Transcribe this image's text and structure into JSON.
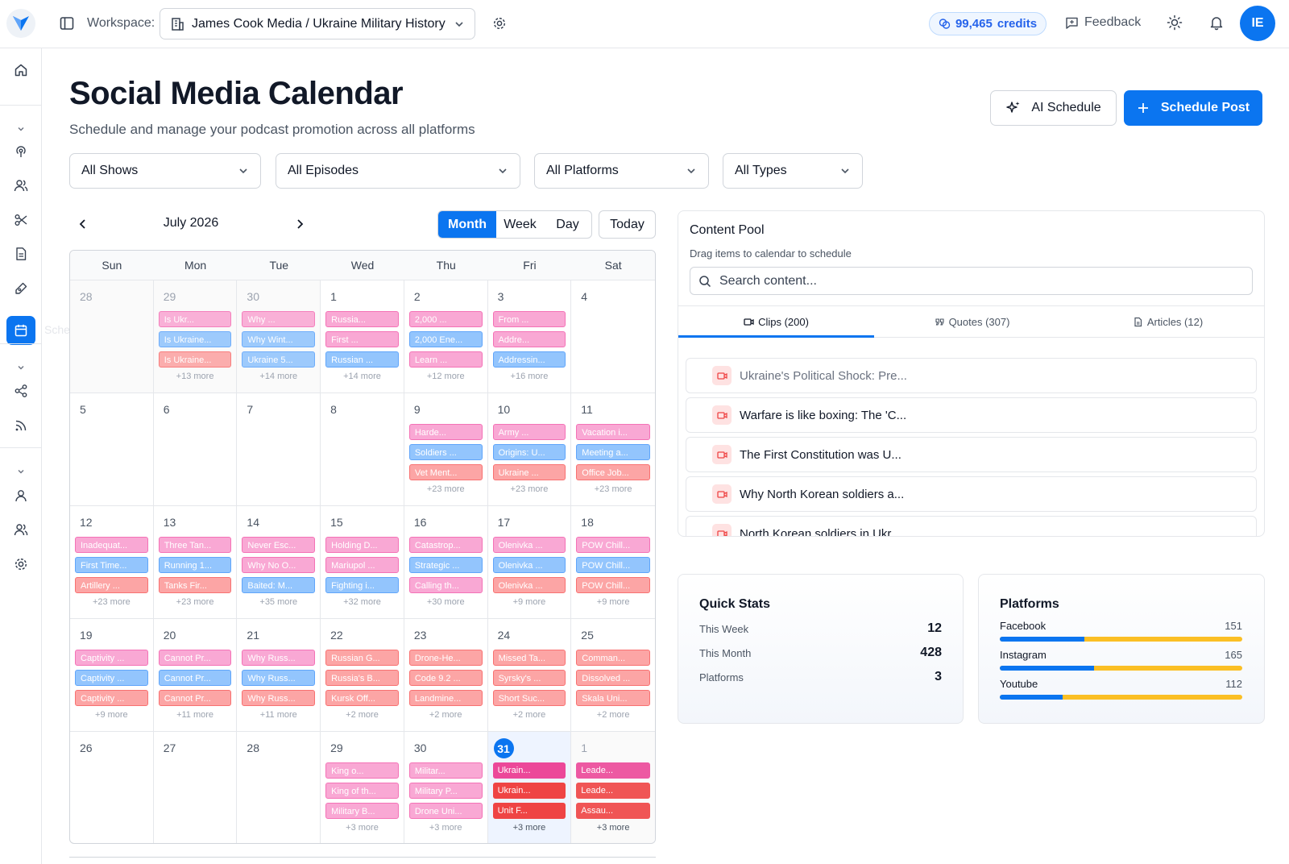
{
  "header": {
    "workspace_label": "Workspace:",
    "workspace_value": "James Cook Media / Ukraine Military History",
    "credits": "99,465",
    "credits_unit": "credits",
    "feedback": "Feedback",
    "avatar_initials": "IE"
  },
  "sidebar": {
    "active_tooltip": "Scheduler",
    "icons": [
      "home-icon",
      "podcast-icon",
      "users-icon",
      "scissors-icon",
      "document-icon",
      "pen-icon",
      "calendar-icon",
      "share-icon",
      "rss-icon",
      "user-icon",
      "team-icon",
      "settings-icon"
    ]
  },
  "page": {
    "title": "Social Media Calendar",
    "subtitle": "Schedule and manage your podcast promotion across all platforms",
    "ai_schedule": "AI Schedule",
    "schedule_post": "Schedule Post"
  },
  "filters": [
    "All Shows",
    "All Episodes",
    "All Platforms",
    "All Types"
  ],
  "calendar": {
    "month_label": "July 2026",
    "views": [
      "Month",
      "Week",
      "Day"
    ],
    "active_view": "Month",
    "today_label": "Today",
    "weekdays": [
      "Sun",
      "Mon",
      "Tue",
      "Wed",
      "Thu",
      "Fri",
      "Sat"
    ],
    "weeks": [
      [
        {
          "day": "28",
          "out": true,
          "events": [],
          "more": ""
        },
        {
          "day": "29",
          "out": true,
          "events": [
            [
              "Is Ukr...",
              "pink"
            ],
            [
              "Is Ukraine...",
              "blue"
            ],
            [
              "Is Ukraine...",
              "salmon"
            ]
          ],
          "more": "+13 more"
        },
        {
          "day": "30",
          "out": true,
          "events": [
            [
              "Why ...",
              "pink"
            ],
            [
              "Why Wint...",
              "blue"
            ],
            [
              "Ukraine 5...",
              "blue"
            ]
          ],
          "more": "+14 more"
        },
        {
          "day": "1",
          "events": [
            [
              "Russia...",
              "pink"
            ],
            [
              "First ...",
              "pink"
            ],
            [
              "Russian ...",
              "blue"
            ]
          ],
          "more": "+14 more"
        },
        {
          "day": "2",
          "events": [
            [
              "2,000 ...",
              "pink"
            ],
            [
              "2,000 Ene...",
              "blue"
            ],
            [
              "Learn ...",
              "pink"
            ]
          ],
          "more": "+12 more"
        },
        {
          "day": "3",
          "events": [
            [
              "From ...",
              "pink"
            ],
            [
              "Addre...",
              "pink"
            ],
            [
              "Addressin...",
              "blue"
            ]
          ],
          "more": "+16 more"
        },
        {
          "day": "4",
          "events": [],
          "more": ""
        }
      ],
      [
        {
          "day": "5",
          "events": [],
          "more": ""
        },
        {
          "day": "6",
          "events": [],
          "more": ""
        },
        {
          "day": "7",
          "events": [],
          "more": ""
        },
        {
          "day": "8",
          "events": [],
          "more": ""
        },
        {
          "day": "9",
          "events": [
            [
              "Harde...",
              "pink"
            ],
            [
              "Soldiers ...",
              "blue"
            ],
            [
              "Vet Ment...",
              "salmon"
            ]
          ],
          "more": "+23 more"
        },
        {
          "day": "10",
          "events": [
            [
              "Army ...",
              "pink"
            ],
            [
              "Origins: U...",
              "blue"
            ],
            [
              "Ukraine ...",
              "salmon"
            ]
          ],
          "more": "+23 more"
        },
        {
          "day": "11",
          "events": [
            [
              "Vacation i...",
              "pink"
            ],
            [
              "Meeting a...",
              "blue"
            ],
            [
              "Office Job...",
              "salmon"
            ]
          ],
          "more": "+23 more"
        }
      ],
      [
        {
          "day": "12",
          "events": [
            [
              "Inadequat...",
              "pink"
            ],
            [
              "First Time...",
              "blue"
            ],
            [
              "Artillery ...",
              "salmon"
            ]
          ],
          "more": "+23 more"
        },
        {
          "day": "13",
          "events": [
            [
              "Three Tan...",
              "pink"
            ],
            [
              "Running 1...",
              "blue"
            ],
            [
              "Tanks Fir...",
              "salmon"
            ]
          ],
          "more": "+23 more"
        },
        {
          "day": "14",
          "events": [
            [
              "Never Esc...",
              "pink"
            ],
            [
              "Why No O...",
              "pink"
            ],
            [
              "Baited: M...",
              "blue"
            ]
          ],
          "more": "+35 more"
        },
        {
          "day": "15",
          "events": [
            [
              "Holding D...",
              "pink"
            ],
            [
              "Mariupol ...",
              "pink"
            ],
            [
              "Fighting i...",
              "blue"
            ]
          ],
          "more": "+32 more"
        },
        {
          "day": "16",
          "events": [
            [
              "Catastrop...",
              "pink"
            ],
            [
              "Strategic ...",
              "blue"
            ],
            [
              "Calling th...",
              "pink"
            ]
          ],
          "more": "+30 more"
        },
        {
          "day": "17",
          "events": [
            [
              "Olenivka ...",
              "pink"
            ],
            [
              "Olenivka ...",
              "blue"
            ],
            [
              "Olenivka ...",
              "salmon"
            ]
          ],
          "more": "+9 more"
        },
        {
          "day": "18",
          "events": [
            [
              "POW Chill...",
              "pink"
            ],
            [
              "POW Chill...",
              "blue"
            ],
            [
              "POW Chill...",
              "salmon"
            ]
          ],
          "more": "+9 more"
        }
      ],
      [
        {
          "day": "19",
          "events": [
            [
              "Captivity ...",
              "pink"
            ],
            [
              "Captivity ...",
              "blue"
            ],
            [
              "Captivity ...",
              "salmon"
            ]
          ],
          "more": "+9 more"
        },
        {
          "day": "20",
          "events": [
            [
              "Cannot Pr...",
              "pink"
            ],
            [
              "Cannot Pr...",
              "blue"
            ],
            [
              "Cannot Pr...",
              "salmon"
            ]
          ],
          "more": "+11 more"
        },
        {
          "day": "21",
          "events": [
            [
              "Why Russ...",
              "pink"
            ],
            [
              "Why Russ...",
              "blue"
            ],
            [
              "Why Russ...",
              "salmon"
            ]
          ],
          "more": "+11 more"
        },
        {
          "day": "22",
          "events": [
            [
              "Russian G...",
              "salmon"
            ],
            [
              "Russia's B...",
              "salmon"
            ],
            [
              "Kursk Off...",
              "salmon"
            ]
          ],
          "more": "+2 more"
        },
        {
          "day": "23",
          "events": [
            [
              "Drone-He...",
              "salmon"
            ],
            [
              "Code 9.2 ...",
              "salmon"
            ],
            [
              "Landmine...",
              "salmon"
            ]
          ],
          "more": "+2 more"
        },
        {
          "day": "24",
          "events": [
            [
              "Missed Ta...",
              "salmon"
            ],
            [
              "Syrsky's ...",
              "salmon"
            ],
            [
              "Short Suc...",
              "salmon"
            ]
          ],
          "more": "+2 more"
        },
        {
          "day": "25",
          "events": [
            [
              "Comman...",
              "salmon"
            ],
            [
              "Dissolved ...",
              "salmon"
            ],
            [
              "Skala Uni...",
              "salmon"
            ]
          ],
          "more": "+2 more"
        }
      ],
      [
        {
          "day": "26",
          "events": [],
          "more": ""
        },
        {
          "day": "27",
          "events": [],
          "more": ""
        },
        {
          "day": "28",
          "events": [],
          "more": ""
        },
        {
          "day": "29",
          "events": [
            [
              "King o...",
              "pink"
            ],
            [
              "King of th...",
              "pink"
            ],
            [
              "Military B...",
              "pink"
            ]
          ],
          "more": "+3 more"
        },
        {
          "day": "30",
          "events": [
            [
              "Militar...",
              "pink"
            ],
            [
              "Military P...",
              "pink"
            ],
            [
              "Drone Uni...",
              "pink"
            ]
          ],
          "more": "+3 more"
        },
        {
          "day": "31",
          "today": true,
          "events": [
            [
              "Ukrain...",
              "hotpink"
            ],
            [
              "Ukrain...",
              "red"
            ],
            [
              "Unit F...",
              "red"
            ]
          ],
          "more": "+3 more"
        },
        {
          "day": "1",
          "out": true,
          "lastsat": true,
          "events": [
            [
              "Leade...",
              "hotpink"
            ],
            [
              "Leade...",
              "red"
            ],
            [
              "Assau...",
              "red"
            ]
          ],
          "more": "+3 more"
        }
      ]
    ]
  },
  "content_pool": {
    "title": "Content Pool",
    "subtitle": "Drag items to calendar to schedule",
    "search_placeholder": "Search content...",
    "tabs": [
      {
        "label": "Clips (200)",
        "icon": "video-icon",
        "active": true
      },
      {
        "label": "Quotes (307)",
        "icon": "quote-icon",
        "active": false
      },
      {
        "label": "Articles (12)",
        "icon": "article-icon",
        "active": false
      }
    ],
    "clips": [
      "Ukraine's Political Shock: Pre...",
      "Warfare is like boxing: The 'C...",
      "The First Constitution was U...",
      "Why North Korean soldiers a...",
      "North Korean soldiers in Ukr..."
    ]
  },
  "quick_stats": {
    "title": "Quick Stats",
    "rows": [
      {
        "label": "This Week",
        "value": "12"
      },
      {
        "label": "This Month",
        "value": "428"
      },
      {
        "label": "Platforms",
        "value": "3"
      }
    ]
  },
  "platforms": {
    "title": "Platforms",
    "rows": [
      {
        "name": "Facebook",
        "value": "151",
        "fill": 0.35
      },
      {
        "name": "Instagram",
        "value": "165",
        "fill": 0.39
      },
      {
        "name": "Youtube",
        "value": "112",
        "fill": 0.26
      }
    ]
  },
  "colors": {
    "accent": "#0b75f0",
    "event_pink": "#f9a8d4",
    "event_blue": "#93c5fd",
    "event_salmon": "#fca5a5",
    "event_hotpink": "#ec4899",
    "event_red": "#ef4444",
    "bar_track": "#fbbf24"
  }
}
